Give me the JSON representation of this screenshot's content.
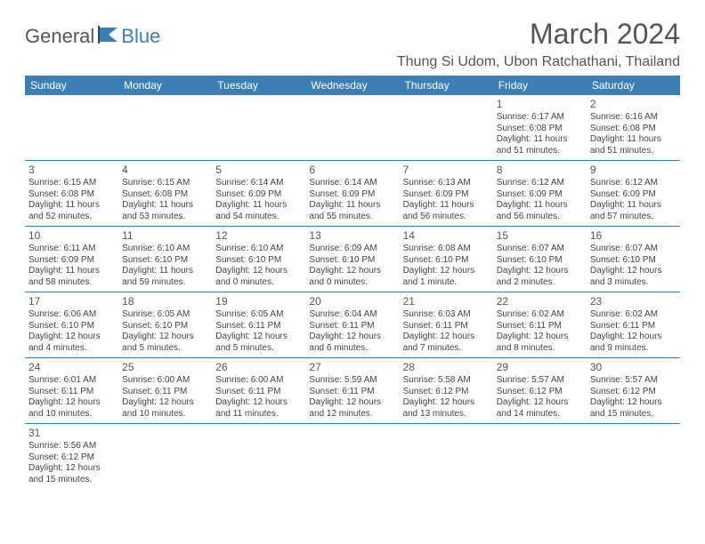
{
  "logo": {
    "part1": "General",
    "part2": "Blue"
  },
  "header": {
    "title": "March 2024",
    "location": "Thung Si Udom, Ubon Ratchathani, Thailand"
  },
  "dayHeaders": [
    "Sunday",
    "Monday",
    "Tuesday",
    "Wednesday",
    "Thursday",
    "Friday",
    "Saturday"
  ],
  "colors": {
    "header_bg": "#3b7fb5",
    "header_text": "#ffffff",
    "border": "#3b7fb5",
    "page_text": "#555555"
  },
  "weeks": [
    [
      {
        "num": "",
        "lines": []
      },
      {
        "num": "",
        "lines": []
      },
      {
        "num": "",
        "lines": []
      },
      {
        "num": "",
        "lines": []
      },
      {
        "num": "",
        "lines": []
      },
      {
        "num": "1",
        "lines": [
          "Sunrise: 6:17 AM",
          "Sunset: 6:08 PM",
          "Daylight: 11 hours and 51 minutes."
        ]
      },
      {
        "num": "2",
        "lines": [
          "Sunrise: 6:16 AM",
          "Sunset: 6:08 PM",
          "Daylight: 11 hours and 51 minutes."
        ]
      }
    ],
    [
      {
        "num": "3",
        "lines": [
          "Sunrise: 6:15 AM",
          "Sunset: 6:08 PM",
          "Daylight: 11 hours and 52 minutes."
        ]
      },
      {
        "num": "4",
        "lines": [
          "Sunrise: 6:15 AM",
          "Sunset: 6:08 PM",
          "Daylight: 11 hours and 53 minutes."
        ]
      },
      {
        "num": "5",
        "lines": [
          "Sunrise: 6:14 AM",
          "Sunset: 6:09 PM",
          "Daylight: 11 hours and 54 minutes."
        ]
      },
      {
        "num": "6",
        "lines": [
          "Sunrise: 6:14 AM",
          "Sunset: 6:09 PM",
          "Daylight: 11 hours and 55 minutes."
        ]
      },
      {
        "num": "7",
        "lines": [
          "Sunrise: 6:13 AM",
          "Sunset: 6:09 PM",
          "Daylight: 11 hours and 56 minutes."
        ]
      },
      {
        "num": "8",
        "lines": [
          "Sunrise: 6:12 AM",
          "Sunset: 6:09 PM",
          "Daylight: 11 hours and 56 minutes."
        ]
      },
      {
        "num": "9",
        "lines": [
          "Sunrise: 6:12 AM",
          "Sunset: 6:09 PM",
          "Daylight: 11 hours and 57 minutes."
        ]
      }
    ],
    [
      {
        "num": "10",
        "lines": [
          "Sunrise: 6:11 AM",
          "Sunset: 6:09 PM",
          "Daylight: 11 hours and 58 minutes."
        ]
      },
      {
        "num": "11",
        "lines": [
          "Sunrise: 6:10 AM",
          "Sunset: 6:10 PM",
          "Daylight: 11 hours and 59 minutes."
        ]
      },
      {
        "num": "12",
        "lines": [
          "Sunrise: 6:10 AM",
          "Sunset: 6:10 PM",
          "Daylight: 12 hours and 0 minutes."
        ]
      },
      {
        "num": "13",
        "lines": [
          "Sunrise: 6:09 AM",
          "Sunset: 6:10 PM",
          "Daylight: 12 hours and 0 minutes."
        ]
      },
      {
        "num": "14",
        "lines": [
          "Sunrise: 6:08 AM",
          "Sunset: 6:10 PM",
          "Daylight: 12 hours and 1 minute."
        ]
      },
      {
        "num": "15",
        "lines": [
          "Sunrise: 6:07 AM",
          "Sunset: 6:10 PM",
          "Daylight: 12 hours and 2 minutes."
        ]
      },
      {
        "num": "16",
        "lines": [
          "Sunrise: 6:07 AM",
          "Sunset: 6:10 PM",
          "Daylight: 12 hours and 3 minutes."
        ]
      }
    ],
    [
      {
        "num": "17",
        "lines": [
          "Sunrise: 6:06 AM",
          "Sunset: 6:10 PM",
          "Daylight: 12 hours and 4 minutes."
        ]
      },
      {
        "num": "18",
        "lines": [
          "Sunrise: 6:05 AM",
          "Sunset: 6:10 PM",
          "Daylight: 12 hours and 5 minutes."
        ]
      },
      {
        "num": "19",
        "lines": [
          "Sunrise: 6:05 AM",
          "Sunset: 6:11 PM",
          "Daylight: 12 hours and 5 minutes."
        ]
      },
      {
        "num": "20",
        "lines": [
          "Sunrise: 6:04 AM",
          "Sunset: 6:11 PM",
          "Daylight: 12 hours and 6 minutes."
        ]
      },
      {
        "num": "21",
        "lines": [
          "Sunrise: 6:03 AM",
          "Sunset: 6:11 PM",
          "Daylight: 12 hours and 7 minutes."
        ]
      },
      {
        "num": "22",
        "lines": [
          "Sunrise: 6:02 AM",
          "Sunset: 6:11 PM",
          "Daylight: 12 hours and 8 minutes."
        ]
      },
      {
        "num": "23",
        "lines": [
          "Sunrise: 6:02 AM",
          "Sunset: 6:11 PM",
          "Daylight: 12 hours and 9 minutes."
        ]
      }
    ],
    [
      {
        "num": "24",
        "lines": [
          "Sunrise: 6:01 AM",
          "Sunset: 6:11 PM",
          "Daylight: 12 hours and 10 minutes."
        ]
      },
      {
        "num": "25",
        "lines": [
          "Sunrise: 6:00 AM",
          "Sunset: 6:11 PM",
          "Daylight: 12 hours and 10 minutes."
        ]
      },
      {
        "num": "26",
        "lines": [
          "Sunrise: 6:00 AM",
          "Sunset: 6:11 PM",
          "Daylight: 12 hours and 11 minutes."
        ]
      },
      {
        "num": "27",
        "lines": [
          "Sunrise: 5:59 AM",
          "Sunset: 6:11 PM",
          "Daylight: 12 hours and 12 minutes."
        ]
      },
      {
        "num": "28",
        "lines": [
          "Sunrise: 5:58 AM",
          "Sunset: 6:12 PM",
          "Daylight: 12 hours and 13 minutes."
        ]
      },
      {
        "num": "29",
        "lines": [
          "Sunrise: 5:57 AM",
          "Sunset: 6:12 PM",
          "Daylight: 12 hours and 14 minutes."
        ]
      },
      {
        "num": "30",
        "lines": [
          "Sunrise: 5:57 AM",
          "Sunset: 6:12 PM",
          "Daylight: 12 hours and 15 minutes."
        ]
      }
    ],
    [
      {
        "num": "31",
        "lines": [
          "Sunrise: 5:56 AM",
          "Sunset: 6:12 PM",
          "Daylight: 12 hours and 15 minutes."
        ]
      },
      {
        "num": "",
        "lines": []
      },
      {
        "num": "",
        "lines": []
      },
      {
        "num": "",
        "lines": []
      },
      {
        "num": "",
        "lines": []
      },
      {
        "num": "",
        "lines": []
      },
      {
        "num": "",
        "lines": []
      }
    ]
  ]
}
